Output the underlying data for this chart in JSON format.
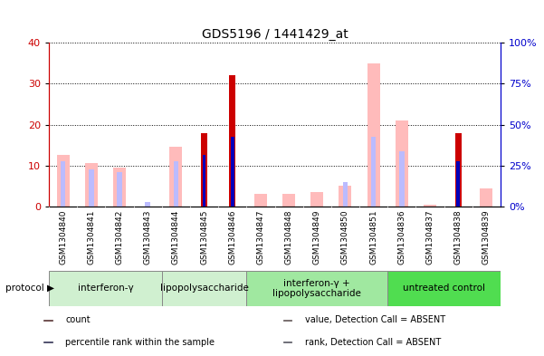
{
  "title": "GDS5196 / 1441429_at",
  "samples": [
    "GSM1304840",
    "GSM1304841",
    "GSM1304842",
    "GSM1304843",
    "GSM1304844",
    "GSM1304845",
    "GSM1304846",
    "GSM1304847",
    "GSM1304848",
    "GSM1304849",
    "GSM1304850",
    "GSM1304851",
    "GSM1304836",
    "GSM1304837",
    "GSM1304838",
    "GSM1304839"
  ],
  "count": [
    0,
    0,
    0,
    0,
    0,
    18,
    32,
    0,
    0,
    0,
    0,
    0,
    0,
    0,
    18,
    0
  ],
  "percentile_rank": [
    0,
    0,
    0,
    0,
    0,
    12.5,
    17,
    0,
    0,
    0,
    0,
    0,
    0,
    0,
    11,
    0
  ],
  "value_absent": [
    12.5,
    10.5,
    9.5,
    0,
    14.5,
    0,
    0,
    3,
    3,
    3.5,
    5,
    35,
    21,
    0.5,
    0,
    4.5
  ],
  "rank_absent": [
    11,
    9,
    8.5,
    1,
    11,
    0,
    16,
    0,
    0,
    0,
    6,
    17,
    13.5,
    0,
    0,
    0
  ],
  "protocols": [
    {
      "label": "interferon-γ",
      "start": 0,
      "end": 4,
      "color": "#d0f0d0"
    },
    {
      "label": "lipopolysaccharide",
      "start": 4,
      "end": 7,
      "color": "#d0f0d0"
    },
    {
      "label": "interferon-γ +\nlipopolysaccharide",
      "start": 7,
      "end": 12,
      "color": "#a0e8a0"
    },
    {
      "label": "untreated control",
      "start": 12,
      "end": 16,
      "color": "#50dd50"
    }
  ],
  "ylim_left": [
    0,
    40
  ],
  "ylim_right": [
    0,
    100
  ],
  "yticks_left": [
    0,
    10,
    20,
    30,
    40
  ],
  "yticks_right": [
    0,
    25,
    50,
    75,
    100
  ],
  "ylabel_left_color": "#cc0000",
  "ylabel_right_color": "#0000cc",
  "color_count": "#cc0000",
  "color_percentile": "#0000bb",
  "color_value_absent": "#ffbbbb",
  "color_rank_absent": "#bbbbff",
  "legend_items": [
    {
      "label": "count",
      "color": "#cc0000"
    },
    {
      "label": "percentile rank within the sample",
      "color": "#0000bb"
    },
    {
      "label": "value, Detection Call = ABSENT",
      "color": "#ffbbbb"
    },
    {
      "label": "rank, Detection Call = ABSENT",
      "color": "#bbbbff"
    }
  ]
}
